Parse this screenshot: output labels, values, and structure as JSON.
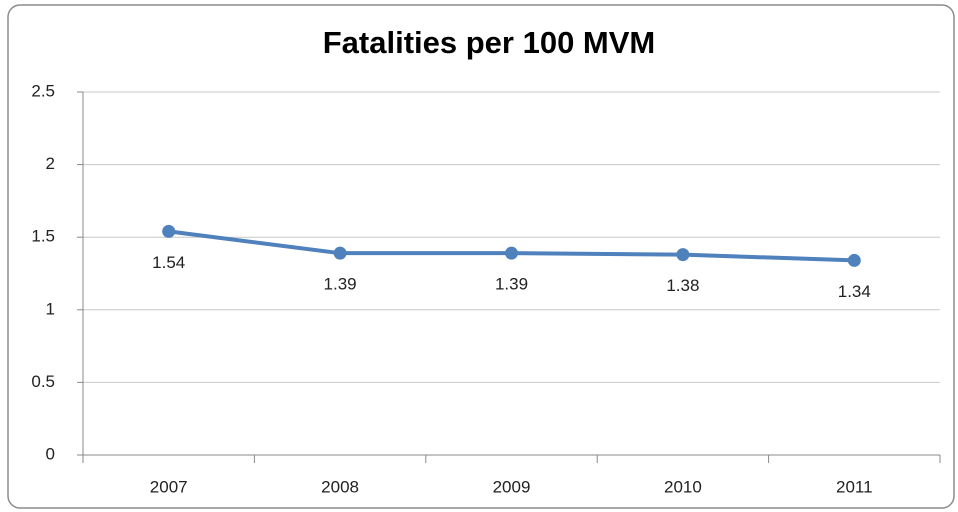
{
  "chart_data": {
    "type": "line",
    "title": "Fatalities per 100 MVM",
    "categories": [
      "2007",
      "2008",
      "2009",
      "2010",
      "2011"
    ],
    "series": [
      {
        "name": "Fatalities per 100 MVM",
        "color": "#4f81bd",
        "values": [
          1.54,
          1.39,
          1.39,
          1.38,
          1.34
        ]
      }
    ],
    "ylim": [
      0,
      2.5
    ],
    "yticks": [
      0,
      0.5,
      1,
      1.5,
      2,
      2.5
    ],
    "grid": true,
    "legend": false
  }
}
